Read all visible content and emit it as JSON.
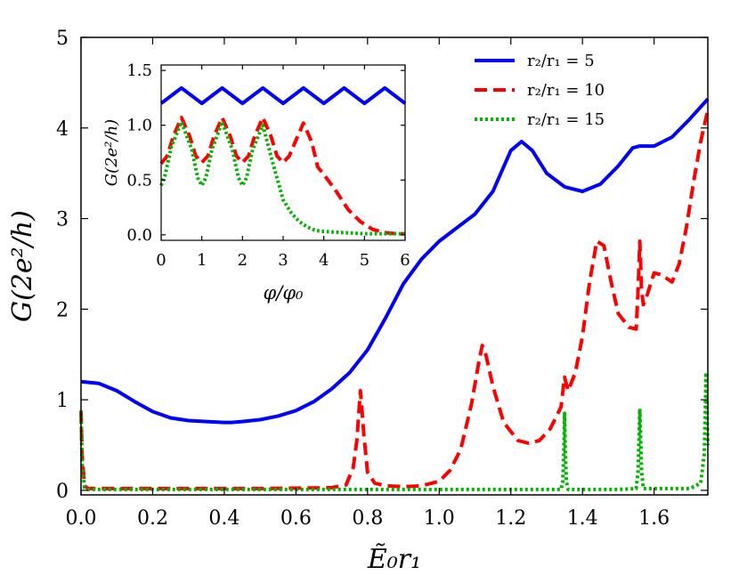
{
  "chart_data": [
    {
      "name": "main",
      "type": "line",
      "xlabel": "Ẽ₀r₁",
      "ylabel": "G(2e²/h)",
      "xlim": [
        0.0,
        1.75
      ],
      "ylim": [
        -0.05,
        5.0
      ],
      "xticks": [
        0.0,
        0.2,
        0.4,
        0.6,
        0.8,
        1.0,
        1.2,
        1.4,
        1.6
      ],
      "xtick_labels": [
        "0.0",
        "0.2",
        "0.4",
        "0.6",
        "0.8",
        "1.0",
        "1.2",
        "1.4",
        "1.6"
      ],
      "yticks": [
        0,
        1,
        2,
        3,
        4,
        5
      ],
      "ytick_labels": [
        "0",
        "1",
        "2",
        "3",
        "4",
        "5"
      ],
      "legend": {
        "placement": "top-right"
      },
      "series": [
        {
          "name": "r2/r1 = 5",
          "legend_label": "r₂/r₁ = 5",
          "color": "#0000ff",
          "style": "solid",
          "x": [
            0.0,
            0.05,
            0.1,
            0.15,
            0.2,
            0.25,
            0.3,
            0.35,
            0.4,
            0.42,
            0.45,
            0.5,
            0.55,
            0.6,
            0.65,
            0.7,
            0.75,
            0.8,
            0.85,
            0.9,
            0.95,
            1.0,
            1.05,
            1.1,
            1.15,
            1.2,
            1.23,
            1.26,
            1.3,
            1.35,
            1.4,
            1.45,
            1.5,
            1.54,
            1.56,
            1.6,
            1.65,
            1.7,
            1.75
          ],
          "y": [
            1.2,
            1.18,
            1.1,
            0.98,
            0.87,
            0.8,
            0.77,
            0.76,
            0.75,
            0.75,
            0.76,
            0.78,
            0.82,
            0.88,
            0.98,
            1.12,
            1.3,
            1.55,
            1.9,
            2.28,
            2.55,
            2.75,
            2.9,
            3.05,
            3.3,
            3.75,
            3.85,
            3.75,
            3.5,
            3.35,
            3.3,
            3.38,
            3.58,
            3.78,
            3.8,
            3.8,
            3.9,
            4.1,
            4.32
          ]
        },
        {
          "name": "r2/r1 = 10",
          "legend_label": "r₂/r₁ = 10",
          "color": "#ff0000",
          "style": "dashed",
          "x": [
            0.0,
            0.003,
            0.01,
            0.02,
            0.1,
            0.3,
            0.5,
            0.7,
            0.74,
            0.76,
            0.77,
            0.78,
            0.79,
            0.8,
            0.82,
            0.85,
            0.9,
            0.95,
            1.0,
            1.03,
            1.06,
            1.09,
            1.11,
            1.12,
            1.13,
            1.15,
            1.18,
            1.22,
            1.25,
            1.28,
            1.31,
            1.34,
            1.35,
            1.36,
            1.38,
            1.4,
            1.42,
            1.44,
            1.46,
            1.48,
            1.5,
            1.53,
            1.55,
            1.555,
            1.56,
            1.565,
            1.57,
            1.58,
            1.6,
            1.62,
            1.65,
            1.67,
            1.69,
            1.71,
            1.73,
            1.75
          ],
          "y": [
            0.88,
            0.4,
            0.05,
            0.02,
            0.02,
            0.02,
            0.02,
            0.03,
            0.06,
            0.25,
            0.55,
            1.1,
            0.6,
            0.2,
            0.08,
            0.05,
            0.04,
            0.05,
            0.1,
            0.22,
            0.45,
            0.95,
            1.4,
            1.6,
            1.5,
            1.15,
            0.75,
            0.55,
            0.52,
            0.55,
            0.68,
            0.92,
            1.25,
            1.1,
            1.3,
            1.7,
            2.3,
            2.75,
            2.7,
            2.3,
            1.95,
            1.8,
            1.78,
            2.2,
            2.75,
            2.2,
            2.05,
            2.15,
            2.4,
            2.38,
            2.3,
            2.5,
            2.9,
            3.4,
            3.85,
            4.2
          ]
        },
        {
          "name": "r2/r1 = 15",
          "legend_label": "r₂/r₁ = 15",
          "color": "#00b400",
          "style": "dotted",
          "x": [
            0.0,
            0.003,
            0.01,
            0.02,
            0.5,
            1.0,
            1.34,
            1.345,
            1.348,
            1.35,
            1.352,
            1.355,
            1.36,
            1.5,
            1.55,
            1.555,
            1.56,
            1.565,
            1.57,
            1.7,
            1.73,
            1.74,
            1.745,
            1.75
          ],
          "y": [
            0.88,
            0.3,
            0.03,
            0.01,
            0.01,
            0.01,
            0.01,
            0.1,
            0.45,
            0.85,
            0.45,
            0.1,
            0.01,
            0.01,
            0.02,
            0.2,
            0.9,
            0.2,
            0.02,
            0.02,
            0.08,
            0.4,
            1.3,
            0.5
          ]
        }
      ]
    },
    {
      "name": "inset",
      "type": "line",
      "xlabel": "φ/φ₀",
      "ylabel": "G(2e²/h)",
      "xlim": [
        0,
        6
      ],
      "ylim": [
        -0.05,
        1.55
      ],
      "xticks": [
        0,
        1,
        2,
        3,
        4,
        5,
        6
      ],
      "xtick_labels": [
        "0",
        "1",
        "2",
        "3",
        "4",
        "5",
        "6"
      ],
      "yticks": [
        0.0,
        0.5,
        1.0,
        1.5
      ],
      "ytick_labels": [
        "0.0",
        "0.5",
        "1.0",
        "1.5"
      ],
      "series": [
        {
          "name": "r2/r1 = 5",
          "color": "#0000ff",
          "style": "solid",
          "x": [
            0.0,
            0.25,
            0.5,
            0.75,
            1.0,
            1.25,
            1.5,
            1.75,
            2.0,
            2.25,
            2.5,
            2.75,
            3.0,
            3.25,
            3.5,
            3.75,
            4.0,
            4.25,
            4.5,
            4.75,
            5.0,
            5.25,
            5.5,
            5.75,
            6.0
          ],
          "y": [
            1.2,
            1.27,
            1.34,
            1.27,
            1.2,
            1.27,
            1.34,
            1.27,
            1.2,
            1.27,
            1.34,
            1.27,
            1.2,
            1.27,
            1.34,
            1.27,
            1.2,
            1.27,
            1.34,
            1.27,
            1.2,
            1.27,
            1.34,
            1.27,
            1.2
          ]
        },
        {
          "name": "r2/r1 = 10",
          "color": "#ff0000",
          "style": "dashed",
          "x": [
            0.0,
            0.15,
            0.3,
            0.5,
            0.7,
            0.85,
            1.0,
            1.15,
            1.3,
            1.5,
            1.7,
            1.85,
            2.0,
            2.15,
            2.3,
            2.5,
            2.7,
            2.85,
            3.0,
            3.15,
            3.3,
            3.5,
            3.7,
            3.85,
            4.0,
            4.3,
            4.6,
            4.9,
            5.2,
            5.5,
            5.8,
            6.0
          ],
          "y": [
            0.65,
            0.72,
            0.9,
            1.07,
            0.9,
            0.72,
            0.66,
            0.72,
            0.9,
            1.07,
            0.9,
            0.72,
            0.66,
            0.72,
            0.9,
            1.07,
            0.9,
            0.72,
            0.66,
            0.72,
            0.85,
            1.02,
            0.85,
            0.62,
            0.55,
            0.4,
            0.23,
            0.12,
            0.05,
            0.02,
            0.01,
            0.01
          ]
        },
        {
          "name": "r2/r1 = 15",
          "color": "#00b400",
          "style": "dotted",
          "x": [
            0.0,
            0.1,
            0.25,
            0.5,
            0.75,
            0.9,
            1.0,
            1.1,
            1.25,
            1.5,
            1.75,
            1.9,
            2.0,
            2.1,
            2.25,
            2.5,
            2.75,
            3.0,
            3.2,
            3.4,
            3.6,
            3.8,
            4.0,
            4.5,
            5.0,
            5.5,
            6.0
          ],
          "y": [
            0.45,
            0.55,
            0.8,
            1.03,
            0.78,
            0.52,
            0.45,
            0.52,
            0.78,
            1.03,
            0.78,
            0.52,
            0.45,
            0.52,
            0.78,
            1.0,
            0.65,
            0.32,
            0.2,
            0.12,
            0.07,
            0.04,
            0.03,
            0.02,
            0.01,
            0.01,
            0.01
          ]
        }
      ]
    }
  ]
}
